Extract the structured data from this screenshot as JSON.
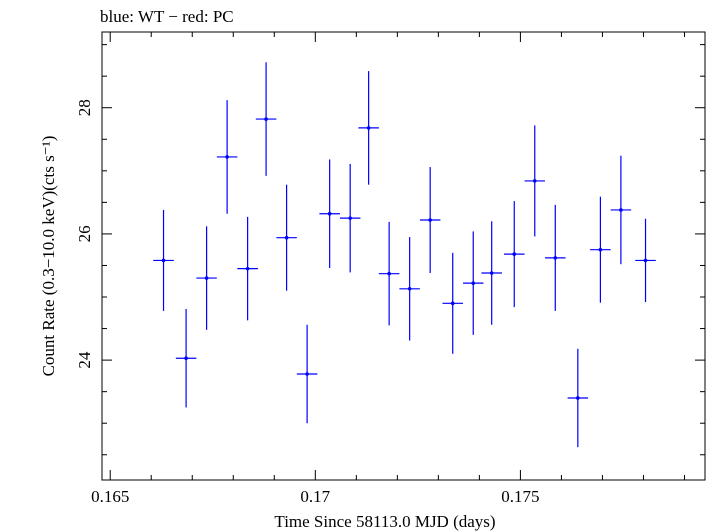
{
  "chart_data": {
    "type": "scatter",
    "title": "blue: WT − red: PC",
    "xlabel": "Time Since 58113.0 MJD (days)",
    "ylabel": "Count Rate (0.3−10.0 keV)(cts s⁻¹)",
    "xlim": [
      0.1648,
      0.1795
    ],
    "ylim": [
      22.1,
      29.2
    ],
    "x_ticks": [
      0.165,
      0.17,
      0.175
    ],
    "x_tick_labels": [
      "0.165",
      "0.17",
      "0.175"
    ],
    "y_ticks": [
      24,
      26,
      28
    ],
    "y_tick_labels": [
      "24",
      "26",
      "28"
    ],
    "x_error": 0.00025,
    "grid": false,
    "series": [
      {
        "color": "#0000ff",
        "points": [
          {
            "x": 0.1663,
            "y": 25.58,
            "yerr": 0.8
          },
          {
            "x": 0.16685,
            "y": 24.03,
            "yerr": 0.78
          },
          {
            "x": 0.16735,
            "y": 25.3,
            "yerr": 0.82
          },
          {
            "x": 0.16785,
            "y": 27.22,
            "yerr": 0.9
          },
          {
            "x": 0.16835,
            "y": 25.45,
            "yerr": 0.82
          },
          {
            "x": 0.1688,
            "y": 27.82,
            "yerr": 0.9
          },
          {
            "x": 0.1693,
            "y": 25.94,
            "yerr": 0.84
          },
          {
            "x": 0.1698,
            "y": 23.78,
            "yerr": 0.78
          },
          {
            "x": 0.17035,
            "y": 26.32,
            "yerr": 0.86
          },
          {
            "x": 0.17085,
            "y": 26.25,
            "yerr": 0.86
          },
          {
            "x": 0.1713,
            "y": 27.68,
            "yerr": 0.9
          },
          {
            "x": 0.1718,
            "y": 25.37,
            "yerr": 0.82
          },
          {
            "x": 0.1723,
            "y": 25.13,
            "yerr": 0.82
          },
          {
            "x": 0.1728,
            "y": 26.22,
            "yerr": 0.84
          },
          {
            "x": 0.17335,
            "y": 24.9,
            "yerr": 0.8
          },
          {
            "x": 0.17385,
            "y": 25.22,
            "yerr": 0.82
          },
          {
            "x": 0.1743,
            "y": 25.38,
            "yerr": 0.82
          },
          {
            "x": 0.17485,
            "y": 25.68,
            "yerr": 0.84
          },
          {
            "x": 0.17535,
            "y": 26.84,
            "yerr": 0.88
          },
          {
            "x": 0.17585,
            "y": 25.62,
            "yerr": 0.84
          },
          {
            "x": 0.1764,
            "y": 23.4,
            "yerr": 0.78
          },
          {
            "x": 0.17695,
            "y": 25.75,
            "yerr": 0.84
          },
          {
            "x": 0.17745,
            "y": 26.38,
            "yerr": 0.86
          },
          {
            "x": 0.17805,
            "y": 25.58,
            "yerr": 0.66
          }
        ]
      }
    ]
  }
}
